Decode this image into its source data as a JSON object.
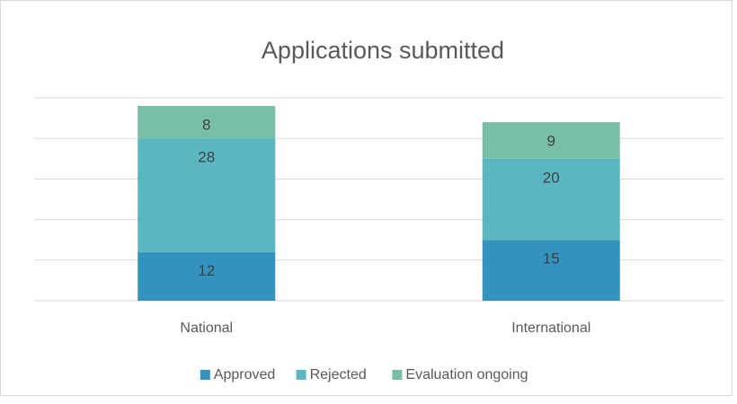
{
  "chart_data": {
    "type": "stacked_bar",
    "title": "Applications submitted",
    "categories": [
      "National",
      "International"
    ],
    "series": [
      {
        "name": "Approved",
        "color": "#3393bf",
        "values": [
          12,
          15
        ]
      },
      {
        "name": "Rejected",
        "color": "#5ab7c1",
        "values": [
          28,
          20
        ]
      },
      {
        "name": "Evaluation ongoing",
        "color": "#78bfa5",
        "values": [
          8,
          9
        ]
      }
    ],
    "ylim": [
      0,
      50
    ],
    "yticks": [
      0,
      10,
      20,
      30,
      40,
      50
    ],
    "grid": true,
    "legend": "bottom"
  }
}
